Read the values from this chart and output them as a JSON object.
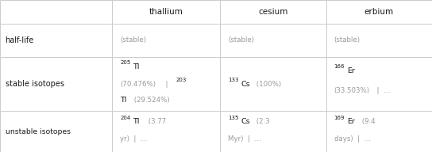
{
  "figsize": [
    5.44,
    1.92
  ],
  "dpi": 100,
  "background_color": "#f3f3f3",
  "cell_bg": "#ffffff",
  "border_color": "#cccccc",
  "text_color": "#1a1a1a",
  "muted_color": "#999999",
  "col_headers": [
    "",
    "thallium",
    "cesium",
    "erbium"
  ],
  "gx": [
    0.0,
    0.26,
    0.51,
    0.755,
    1.0
  ],
  "gy": [
    1.0,
    0.845,
    0.625,
    0.27,
    0.0
  ],
  "fs_header": 7.5,
  "fs_label": 7.0,
  "fs_cell": 6.8,
  "fs_muted": 6.2,
  "fs_super": 5.0
}
